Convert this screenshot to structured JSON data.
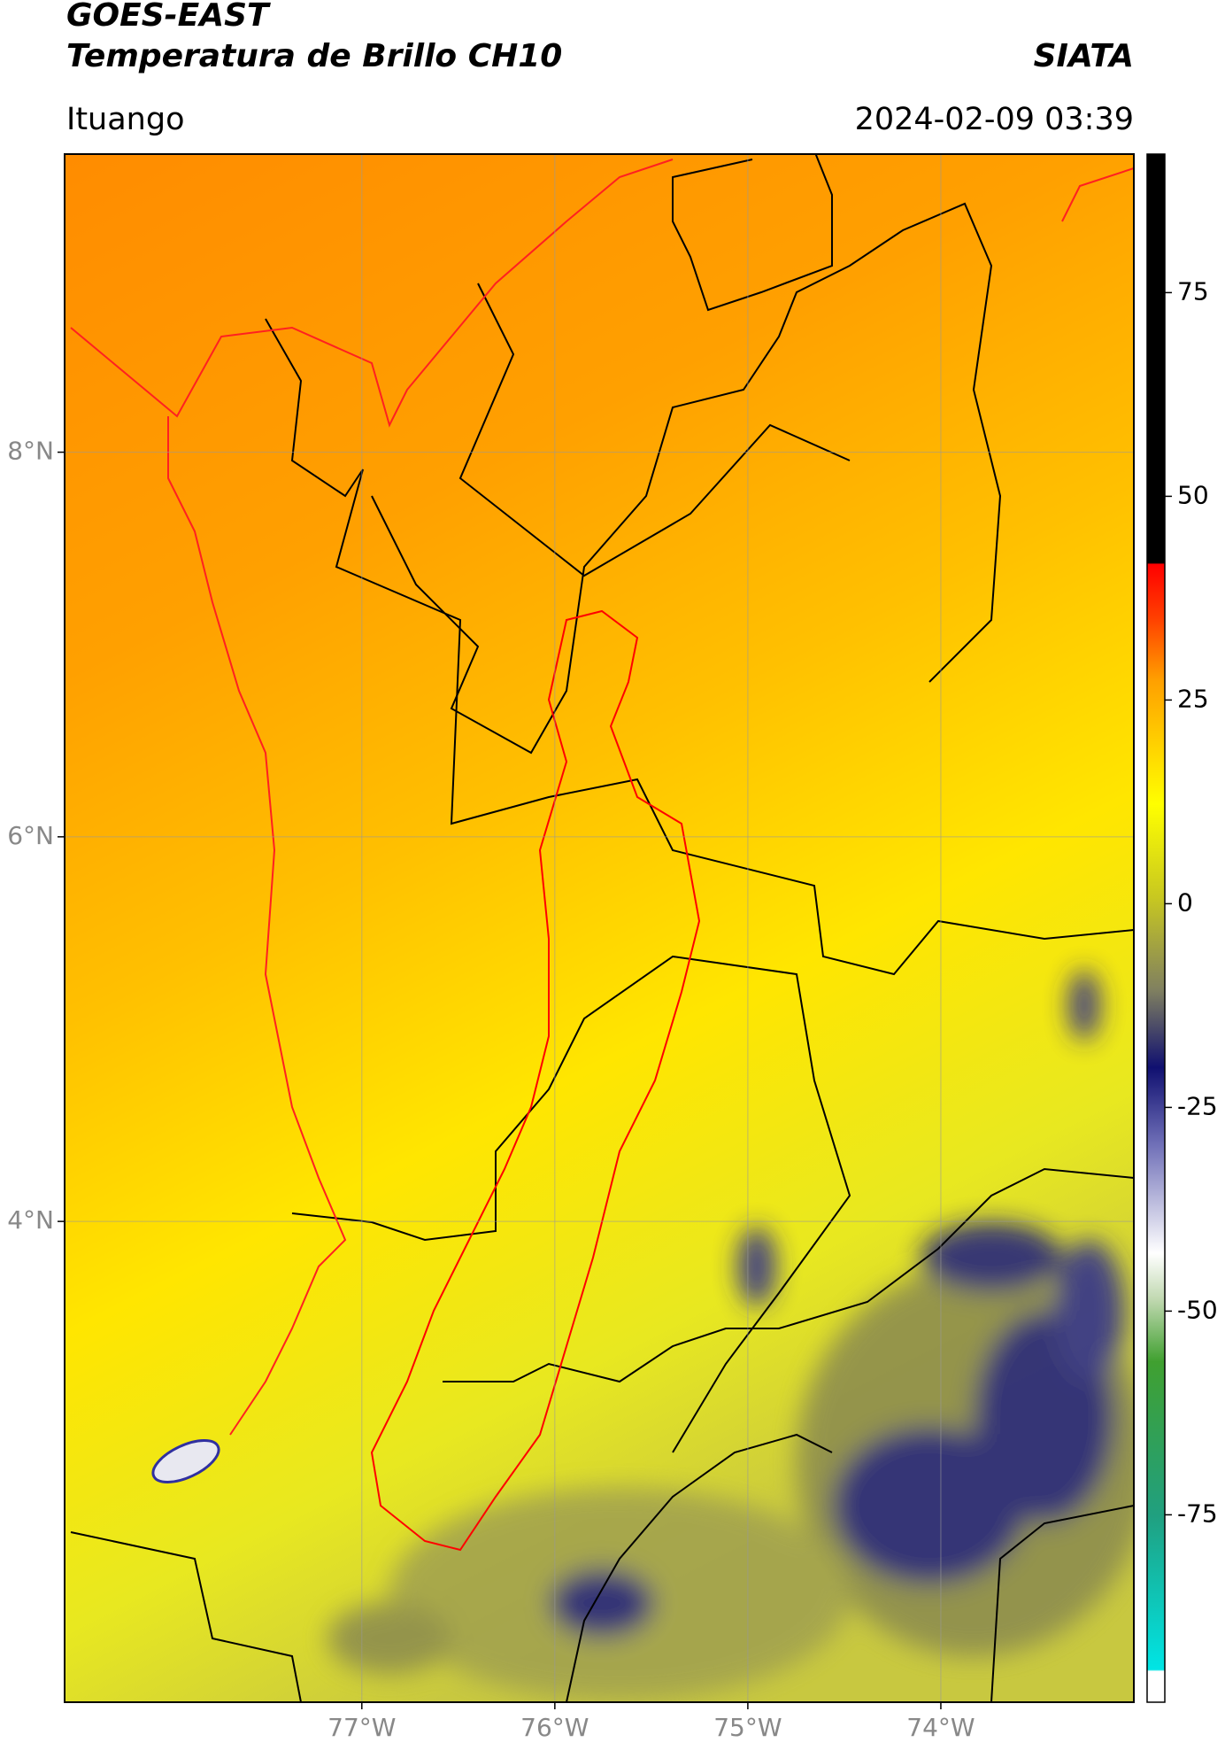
{
  "header": {
    "title": "GOES-EAST",
    "subtitle": "Temperatura de Brillo CH10",
    "source": "SIATA",
    "region": "Ituango",
    "datetime": "2024-02-09 03:39"
  },
  "map": {
    "lonlim": [
      -78.54,
      -73.0
    ],
    "latlim": [
      1.5,
      9.55
    ],
    "lonticks": [
      {
        "value": -77,
        "label": "77°W"
      },
      {
        "value": -76,
        "label": "76°W"
      },
      {
        "value": -75,
        "label": "75°W"
      },
      {
        "value": -74,
        "label": "74°W"
      }
    ],
    "latticks": [
      {
        "value": 8,
        "label": "8°N"
      },
      {
        "value": 6,
        "label": "6°N"
      },
      {
        "value": 4,
        "label": "4°N"
      }
    ],
    "grid": true
  },
  "colorbar": {
    "lim": [
      -98,
      92
    ],
    "ticks": [
      75,
      50,
      25,
      0,
      -25,
      -50,
      -75
    ]
  }
}
